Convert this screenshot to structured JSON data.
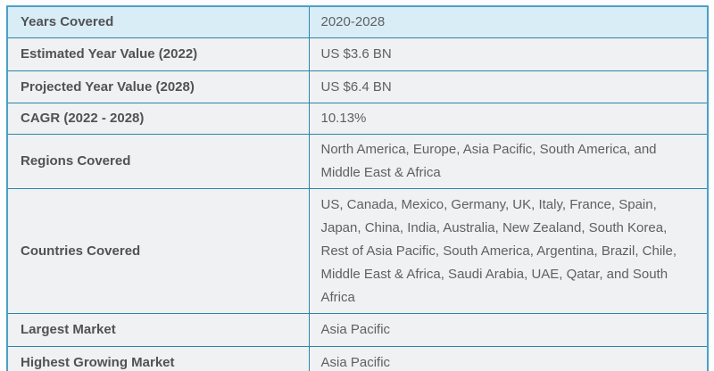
{
  "colors": {
    "outer_border": "#4d9fc7",
    "inner_border": "#2c86aa",
    "highlight_row_bg": "#d9edf7",
    "row_bg": "#eff1f2",
    "label_text": "#515254",
    "value_text": "#5f6062",
    "page_bg": "#fbfdfe"
  },
  "table": {
    "rows": [
      {
        "label": "Years Covered",
        "value": "2020-2028",
        "highlighted": true
      },
      {
        "label": "Estimated Year Value (2022)",
        "value": "US $3.6 BN",
        "highlighted": false
      },
      {
        "label": "Projected Year Value (2028)",
        "value": "US $6.4 BN",
        "highlighted": false
      },
      {
        "label": "CAGR (2022 - 2028)",
        "value": "10.13%",
        "highlighted": false
      },
      {
        "label": "Regions Covered",
        "value": "North America, Europe, Asia Pacific, South America, and Middle East & Africa",
        "highlighted": false
      },
      {
        "label": "Countries Covered",
        "value": "US, Canada, Mexico, Germany, UK, Italy, France, Spain, Japan, China, India, Australia, New Zealand, South Korea, Rest of Asia Pacific, South America, Argentina, Brazil, Chile, Middle East & Africa, Saudi Arabia, UAE, Qatar, and South Africa",
        "highlighted": false
      },
      {
        "label": "Largest Market",
        "value": "Asia Pacific",
        "highlighted": false
      },
      {
        "label": "Highest Growing Market",
        "value": "Asia Pacific",
        "highlighted": false
      }
    ]
  }
}
